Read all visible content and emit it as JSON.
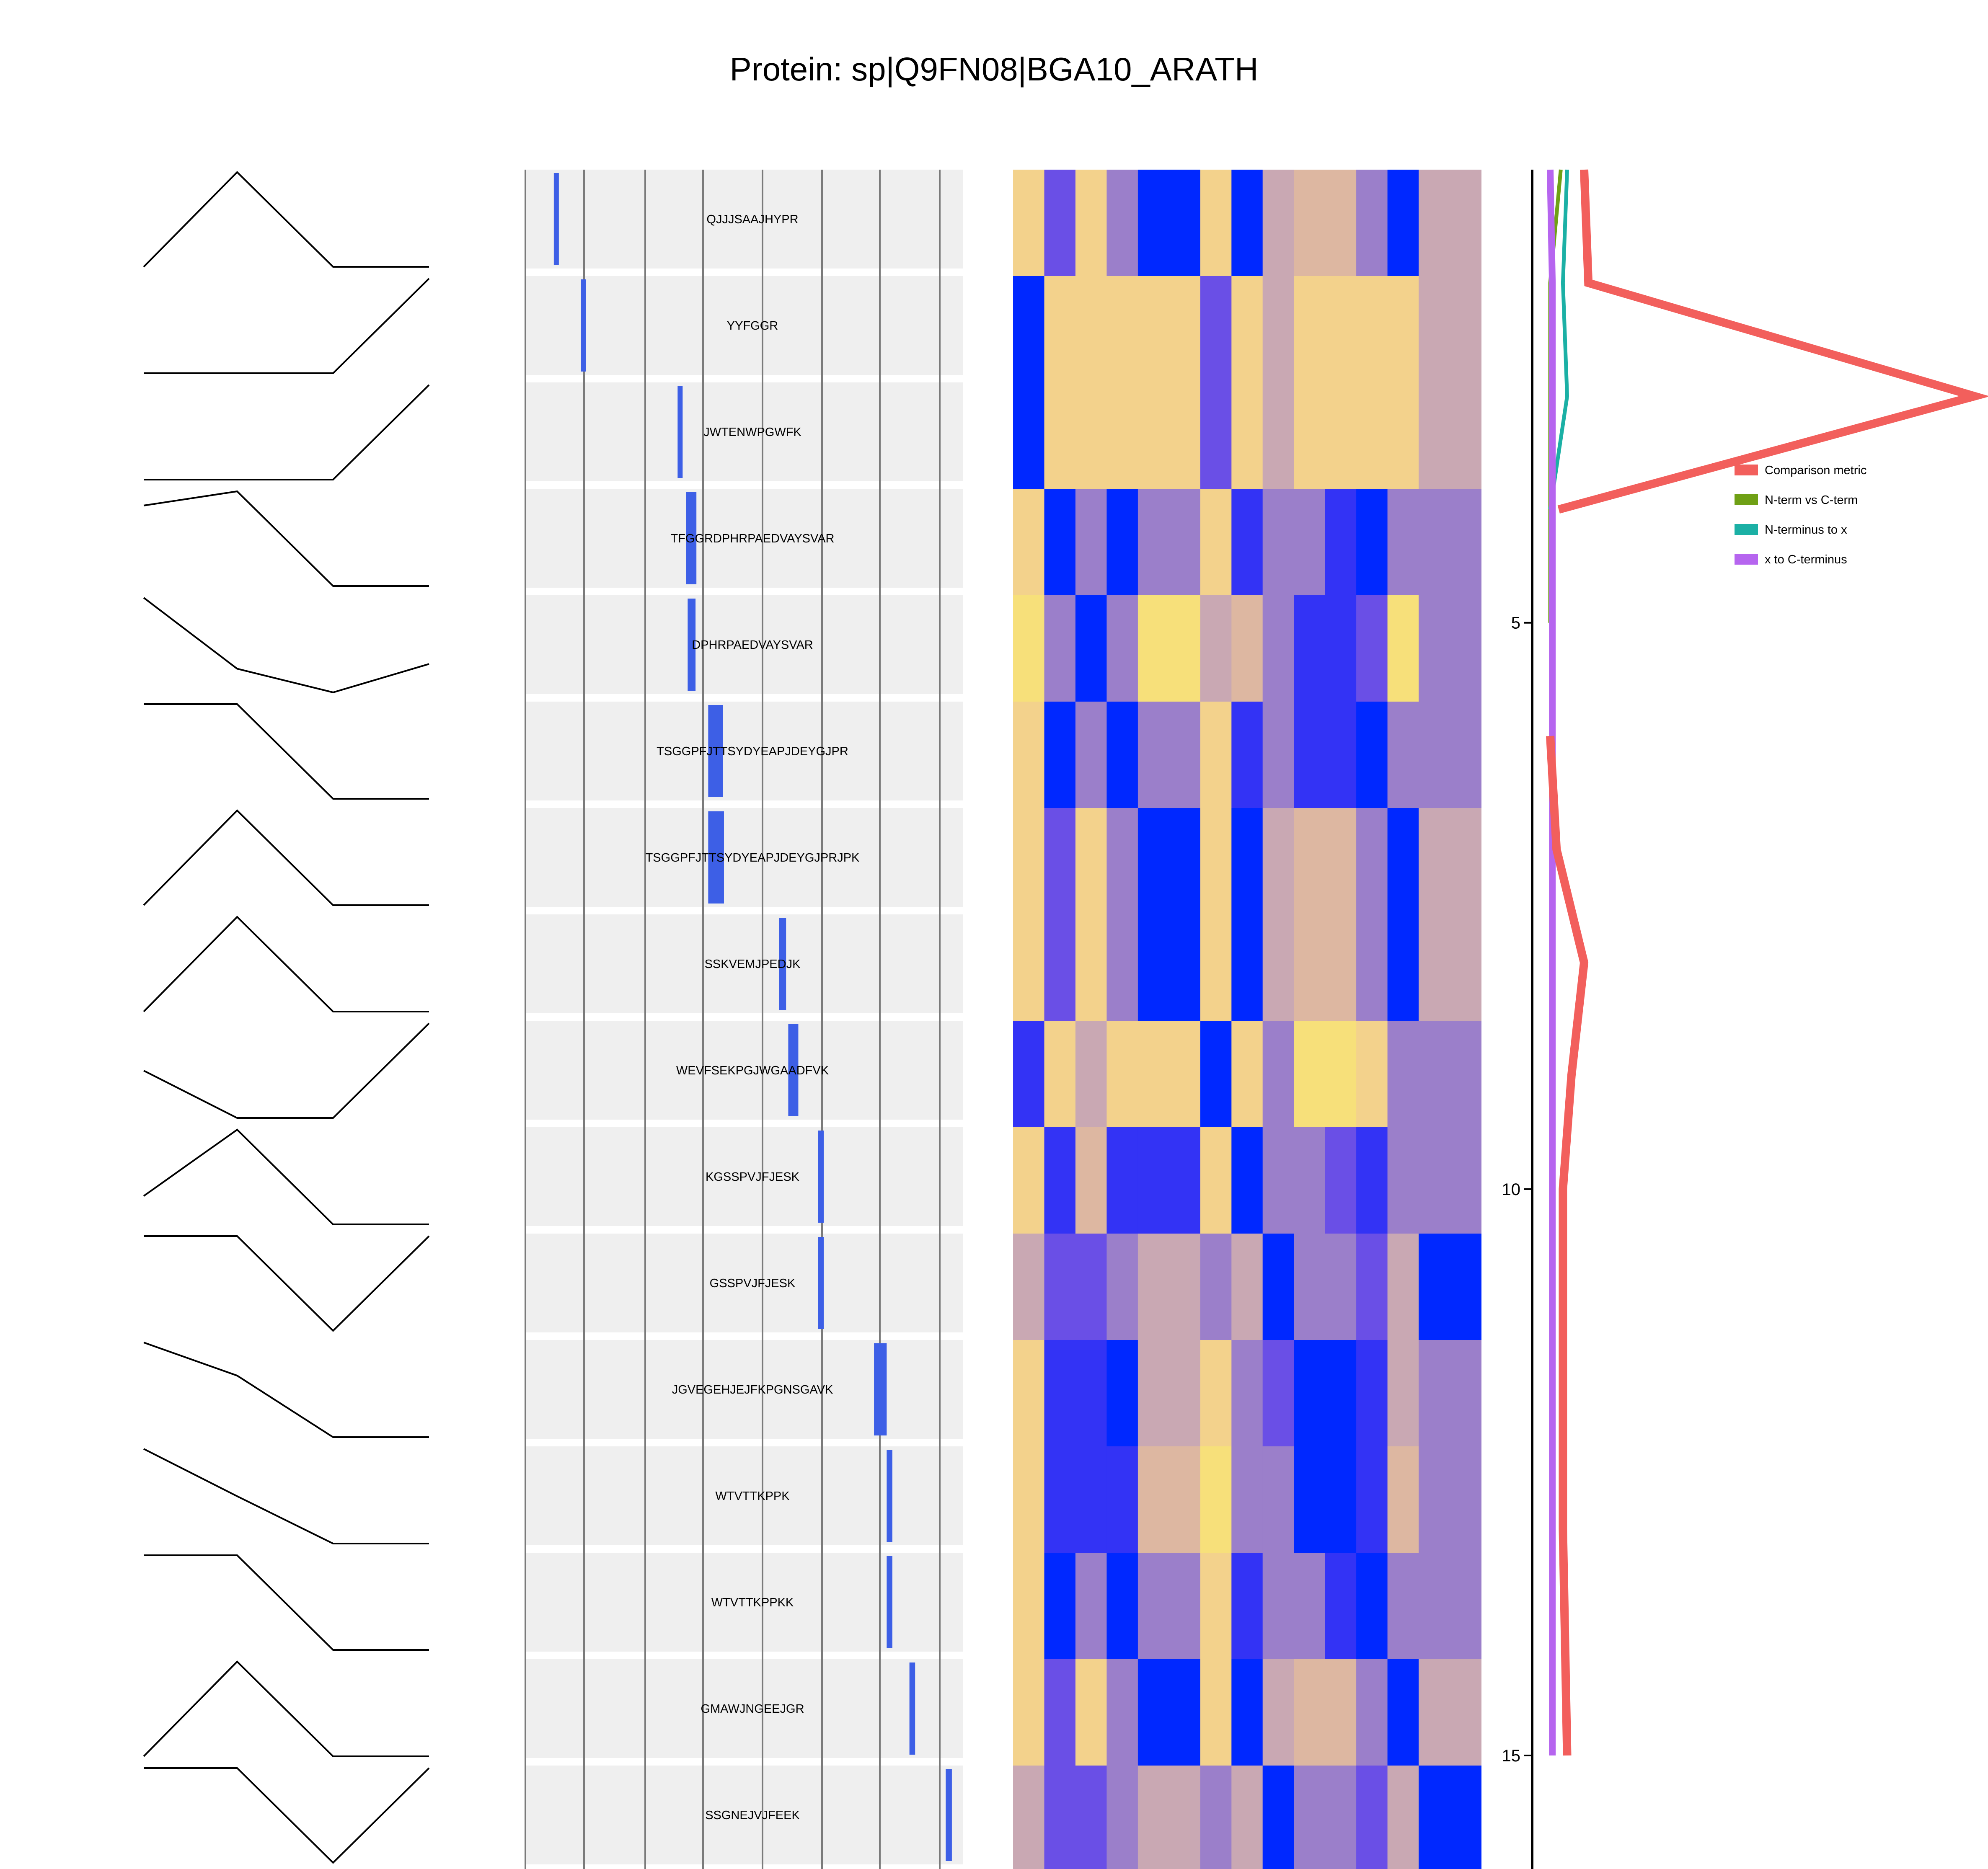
{
  "title": "Protein: sp|Q9FN08|BGA10_ARATH",
  "colors": {
    "peptide_bar": "#3d5fe6",
    "track_bg": "#efefef",
    "comparison": "#f25f5c",
    "nterm_vs_cterm": "#6fa015",
    "nterm_to_x": "#1bb0a5",
    "x_to_cterm": "#b665ef"
  },
  "chart_data": {
    "type": "peptide-coverage-panel",
    "title": "Protein: sp|Q9FN08|BGA10_ARATH",
    "peptides": [
      {
        "seq": "QJJJSAAJHYPR",
        "start": 0.065,
        "end": 0.075,
        "profile": [
          0.0,
          1.0,
          0.0,
          0.0
        ]
      },
      {
        "seq": "YYFGGR",
        "start": 0.127,
        "end": 0.134,
        "profile": [
          0.0,
          0.0,
          0.0,
          1.0
        ]
      },
      {
        "seq": "JWTENWPGWFK",
        "start": 0.348,
        "end": 0.355,
        "profile": [
          0.0,
          0.0,
          0.0,
          1.0
        ]
      },
      {
        "seq": "TFGGRDPHRPAEDVAYSVAR",
        "start": 0.367,
        "end": 0.391,
        "profile": [
          0.85,
          1.0,
          0.0,
          0.0
        ]
      },
      {
        "seq": "DPHRPAEDVAYSVAR",
        "start": 0.371,
        "end": 0.389,
        "profile": [
          1.0,
          0.25,
          0.0,
          0.3
        ]
      },
      {
        "seq": "TSGGPFJTTSYDYEAPJDEYGJPR",
        "start": 0.418,
        "end": 0.452,
        "profile": [
          1.0,
          1.0,
          0.0,
          0.0
        ]
      },
      {
        "seq": "TSGGPFJTTSYDYEAPJDEYGJPRJPK",
        "start": 0.418,
        "end": 0.454,
        "profile": [
          0.0,
          1.0,
          0.0,
          0.0
        ]
      },
      {
        "seq": "SSKVEMJPEDJK",
        "start": 0.58,
        "end": 0.596,
        "profile": [
          0.0,
          1.0,
          0.0,
          0.0
        ]
      },
      {
        "seq": "WEVFSEKPGJWGAADFVK",
        "start": 0.601,
        "end": 0.624,
        "profile": [
          0.5,
          0.0,
          0.0,
          1.0
        ]
      },
      {
        "seq": "KGSSPVJFJESK",
        "start": 0.669,
        "end": 0.682,
        "profile": [
          0.3,
          1.0,
          0.0,
          0.0
        ]
      },
      {
        "seq": "GSSPVJFJESK",
        "start": 0.669,
        "end": 0.682,
        "profile": [
          1.0,
          1.0,
          0.0,
          1.0
        ]
      },
      {
        "seq": "JGVEGEHJEJFKPGNSGAVK",
        "start": 0.797,
        "end": 0.826,
        "profile": [
          1.0,
          0.65,
          0.0,
          0.0
        ]
      },
      {
        "seq": "WTVTTKPPK",
        "start": 0.826,
        "end": 0.839,
        "profile": [
          1.0,
          0.5,
          0.0,
          0.0
        ]
      },
      {
        "seq": "WTVTTKPPKK",
        "start": 0.826,
        "end": 0.839,
        "profile": [
          1.0,
          1.0,
          0.0,
          0.0
        ]
      },
      {
        "seq": "GMAWJNGEEJGR",
        "start": 0.878,
        "end": 0.891,
        "profile": [
          0.0,
          1.0,
          0.0,
          0.0
        ]
      },
      {
        "seq": "SSGNEJVJFEEK",
        "start": 0.961,
        "end": 0.975,
        "profile": [
          1.0,
          1.0,
          0.0,
          1.0
        ]
      }
    ],
    "heatmap": {
      "columns": 15,
      "palette": {
        "Y": "#f3d28c",
        "B": "#0028ff",
        "b": "#3333f5",
        "m": "#6a4fe6",
        "p": "#9b7fca",
        "P": "#c9a8b3",
        "L": "#f7e07a",
        "T": "#ddb7a1"
      },
      "rows": [
        "YmYpBBYBPTTpBP",
        "BYYYYYmYPYYYYP",
        "BYYYYYmYPYYYYP",
        "YBpBppYbppbBpp",
        "LpBpLLPTpbbmLp",
        "YBpBppYbpbbBpp",
        "YmYpBBYBPTTpBP",
        "YmYpBBYBPTTpBP",
        "bYPYYYBYpLLYp",
        "YbTbbbYBppmbpp",
        "PmmpPPpPBppmPB",
        "YbbBPPYpmBBbPp",
        "YbbbTTLppBBbTp",
        "YBpBppYbppbBpp",
        "YmYpBBYBPTTpBP",
        "PmmpPPpPBppmPB"
      ]
    },
    "side_plot": {
      "type": "line",
      "y_ticks": [
        "5",
        "10",
        "15"
      ],
      "y_tick_values": [
        5,
        10,
        15
      ],
      "ylim": [
        1,
        16
      ],
      "series": [
        {
          "name": "Comparison metric",
          "y": [
            1,
            2,
            3,
            4
          ],
          "x": [
            0.08,
            0.09,
            1.0,
            0.02
          ]
        },
        {
          "name": "Comparison metric",
          "y": [
            6,
            7,
            8,
            9,
            10,
            11,
            12,
            13,
            14,
            15
          ],
          "x": [
            0.0,
            0.015,
            0.08,
            0.05,
            0.03,
            0.03,
            0.03,
            0.03,
            0.035,
            0.04
          ]
        },
        {
          "name": "N-term vs C-term",
          "y": [
            1,
            2,
            3,
            4,
            5
          ],
          "x": [
            0.025,
            0.0,
            0.0,
            0.0,
            0.0
          ]
        },
        {
          "name": "N-terminus to x",
          "y": [
            1,
            2,
            3,
            4
          ],
          "x": [
            0.04,
            0.03,
            0.04,
            0.0
          ]
        },
        {
          "name": "N-terminus to x",
          "y": [
            6,
            7,
            8,
            9,
            10,
            11,
            12,
            13,
            14,
            15
          ],
          "x": [
            0.0,
            0.005,
            0.005,
            0.005,
            0.005,
            0.005,
            0.005,
            0.005,
            0.005,
            0.005
          ]
        },
        {
          "name": "x to C-terminus",
          "y": [
            1,
            2,
            3,
            4,
            5,
            6,
            7,
            8,
            9,
            10,
            11,
            12,
            13,
            14,
            15
          ],
          "x": [
            0.0,
            0.005,
            0.005,
            0.005,
            0.005,
            0.005,
            0.005,
            0.005,
            0.005,
            0.005,
            0.005,
            0.005,
            0.005,
            0.005,
            0.005
          ]
        }
      ]
    },
    "legend": [
      "Comparison metric",
      "N-term vs C-term",
      "N-terminus to x",
      "x to C-terminus"
    ]
  }
}
